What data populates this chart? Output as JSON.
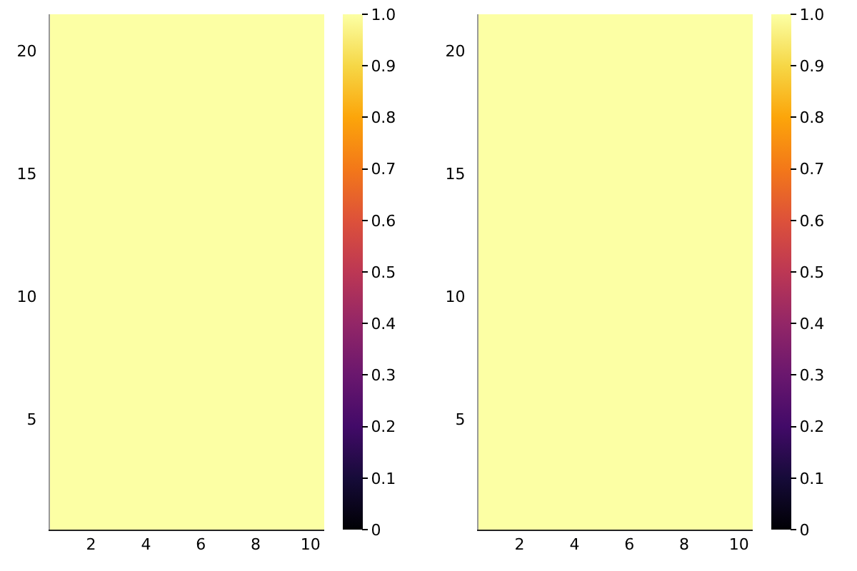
{
  "chart_data": [
    {
      "type": "heatmap",
      "categories": [
        null,
        "2",
        null,
        "4",
        null,
        "6",
        null,
        "8",
        null,
        "10"
      ],
      "y_categories": [
        null,
        "20",
        null,
        null,
        null,
        null,
        "15",
        null,
        null,
        null,
        null,
        "10",
        null,
        null,
        null,
        null,
        "5",
        null,
        null,
        null,
        null
      ],
      "cells": [
        [
          1,
          1,
          1,
          1,
          1,
          1,
          1,
          1,
          1,
          1
        ],
        [
          1,
          1,
          1,
          1,
          1,
          1,
          1,
          1,
          1,
          1
        ],
        [
          1,
          1,
          1,
          1,
          1,
          1,
          1,
          1,
          1,
          1
        ],
        [
          1,
          1,
          1,
          1,
          1,
          1,
          1,
          1,
          1,
          1
        ],
        [
          1,
          1,
          1,
          1,
          1,
          1,
          1,
          1,
          1,
          1
        ],
        [
          1,
          1,
          1,
          1,
          1,
          1,
          1,
          1,
          1,
          1
        ],
        [
          1,
          1,
          1,
          1,
          1,
          1,
          1,
          1,
          1,
          1
        ],
        [
          1,
          1,
          1,
          1,
          1,
          1,
          1,
          1,
          1,
          1
        ],
        [
          1,
          1,
          1,
          1,
          1,
          1,
          1,
          1,
          1,
          1
        ],
        [
          1,
          1,
          1,
          1,
          1,
          1,
          1,
          1,
          1,
          1
        ],
        [
          1,
          1,
          1,
          1,
          1,
          1,
          1,
          1,
          1,
          1
        ],
        [
          1,
          1,
          1,
          1,
          1,
          1,
          1,
          1,
          1,
          1
        ],
        [
          1,
          1,
          1,
          1,
          1,
          1,
          1,
          1,
          1,
          1
        ],
        [
          1,
          1,
          1,
          1,
          1,
          1,
          1,
          1,
          1,
          1
        ],
        [
          1,
          1,
          1,
          1,
          1,
          1,
          1,
          1,
          1,
          1
        ],
        [
          1,
          1,
          1,
          1,
          1,
          1,
          1,
          1,
          1,
          1
        ],
        [
          1,
          1,
          1,
          1,
          1,
          1,
          1,
          1,
          1,
          1
        ],
        [
          1,
          1,
          1,
          1,
          1,
          1,
          1,
          1,
          1,
          1
        ],
        [
          1,
          1,
          1,
          1,
          1,
          1,
          1,
          1,
          1,
          1
        ],
        [
          1,
          1,
          1,
          1,
          1,
          1,
          1,
          1,
          1,
          1
        ],
        [
          1,
          1,
          1,
          1,
          1,
          1,
          1,
          1,
          1,
          1
        ]
      ],
      "clim": [
        0,
        1
      ],
      "cticks": [
        0,
        0.1,
        0.2,
        0.3,
        0.4,
        0.5,
        0.6,
        0.7,
        0.8,
        0.9,
        {
          "value": 1,
          "label": "1.0"
        }
      ]
    },
    {
      "type": "heatmap",
      "categories": [
        null,
        "2",
        null,
        "4",
        null,
        "6",
        null,
        "8",
        null,
        "10"
      ],
      "y_categories": [
        null,
        "20",
        null,
        null,
        null,
        null,
        "15",
        null,
        null,
        null,
        null,
        "10",
        null,
        null,
        null,
        null,
        "5",
        null,
        null,
        null,
        null
      ],
      "cells": [
        [
          1,
          1,
          1,
          1,
          1,
          1,
          1,
          1,
          1,
          1
        ],
        [
          1,
          1,
          1,
          1,
          1,
          1,
          1,
          1,
          1,
          1
        ],
        [
          1,
          1,
          1,
          1,
          1,
          1,
          1,
          1,
          1,
          1
        ],
        [
          1,
          1,
          1,
          1,
          1,
          1,
          1,
          1,
          1,
          1
        ],
        [
          1,
          1,
          1,
          1,
          1,
          1,
          1,
          1,
          1,
          1
        ],
        [
          1,
          1,
          1,
          1,
          1,
          1,
          1,
          1,
          1,
          1
        ],
        [
          1,
          1,
          1,
          1,
          1,
          1,
          1,
          1,
          1,
          1
        ],
        [
          1,
          1,
          1,
          1,
          1,
          1,
          1,
          1,
          1,
          1
        ],
        [
          1,
          1,
          1,
          1,
          1,
          1,
          1,
          1,
          1,
          1
        ],
        [
          1,
          1,
          1,
          1,
          1,
          1,
          1,
          1,
          1,
          1
        ],
        [
          1,
          1,
          1,
          1,
          1,
          1,
          1,
          1,
          1,
          1
        ],
        [
          1,
          1,
          1,
          1,
          1,
          1,
          1,
          1,
          1,
          1
        ],
        [
          1,
          1,
          1,
          1,
          1,
          1,
          1,
          1,
          1,
          1
        ],
        [
          1,
          1,
          1,
          1,
          1,
          1,
          1,
          1,
          1,
          1
        ],
        [
          1,
          1,
          1,
          1,
          1,
          1,
          1,
          1,
          1,
          1
        ],
        [
          1,
          1,
          1,
          1,
          1,
          1,
          1,
          1,
          1,
          1
        ],
        [
          1,
          1,
          1,
          1,
          1,
          1,
          1,
          1,
          1,
          1
        ],
        [
          1,
          1,
          1,
          1,
          1,
          1,
          1,
          1,
          1,
          1
        ],
        [
          1,
          1,
          1,
          1,
          1,
          1,
          1,
          1,
          1,
          1
        ],
        [
          1,
          1,
          1,
          1,
          1,
          1,
          1,
          1,
          1,
          1
        ],
        [
          1,
          1,
          1,
          1,
          1,
          1,
          1,
          1,
          1,
          1
        ]
      ],
      "clim": [
        0,
        1
      ],
      "cticks": [
        0,
        0.1,
        0.2,
        0.3,
        0.4,
        0.5,
        0.6,
        0.7,
        0.8,
        0.9,
        {
          "value": 1,
          "label": "1.0"
        }
      ]
    }
  ]
}
